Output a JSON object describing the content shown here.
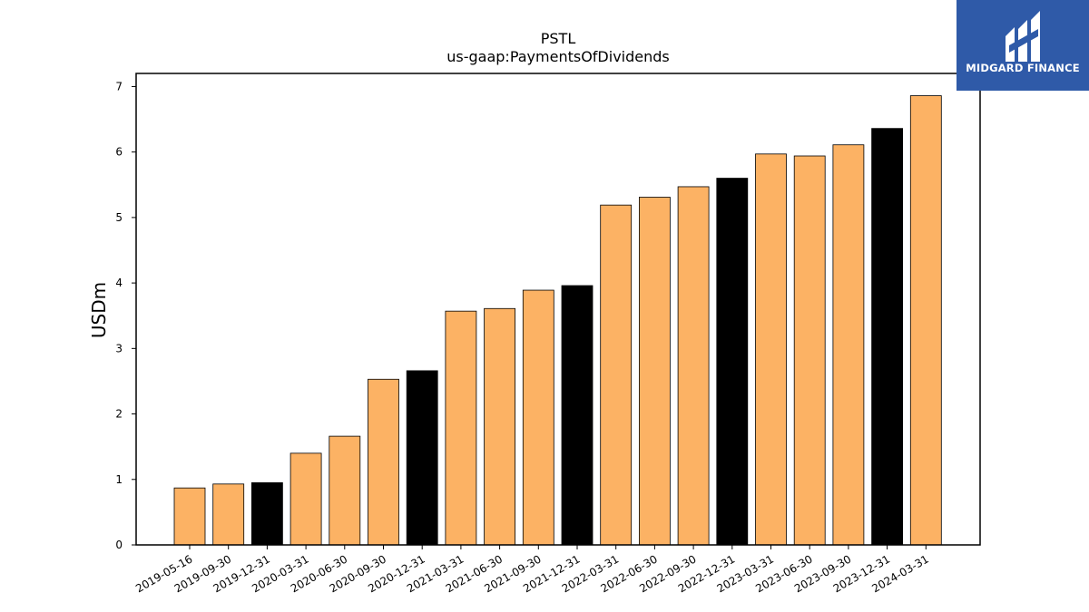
{
  "brand": {
    "name": "MIDGARD FINANCE",
    "bg_color": "#2f5aa8"
  },
  "chart_data": {
    "type": "bar",
    "title": "PSTL",
    "subtitle": "us-gaap:PaymentsOfDividends",
    "xlabel": "",
    "ylabel": "USDm",
    "ylim": [
      0,
      7.2
    ],
    "yticks": [
      0,
      1,
      2,
      3,
      4,
      5,
      6,
      7
    ],
    "grid": false,
    "categories": [
      "2019-05-16",
      "2019-09-30",
      "2019-12-31",
      "2020-03-31",
      "2020-06-30",
      "2020-09-30",
      "2020-12-31",
      "2021-03-31",
      "2021-06-30",
      "2021-09-30",
      "2021-12-31",
      "2022-03-31",
      "2022-06-30",
      "2022-09-30",
      "2022-12-31",
      "2023-03-31",
      "2023-06-30",
      "2023-09-30",
      "2023-12-31",
      "2024-03-31"
    ],
    "values": [
      0.87,
      0.93,
      0.95,
      1.4,
      1.66,
      2.53,
      2.66,
      3.57,
      3.61,
      3.89,
      3.96,
      5.19,
      5.31,
      5.47,
      5.6,
      5.97,
      5.94,
      6.11,
      6.36,
      6.86
    ],
    "bar_colors": [
      "#fcb264",
      "#fcb264",
      "#000000",
      "#fcb264",
      "#fcb264",
      "#fcb264",
      "#000000",
      "#fcb264",
      "#fcb264",
      "#fcb264",
      "#000000",
      "#fcb264",
      "#fcb264",
      "#fcb264",
      "#000000",
      "#fcb264",
      "#fcb264",
      "#fcb264",
      "#000000",
      "#fcb264"
    ]
  }
}
